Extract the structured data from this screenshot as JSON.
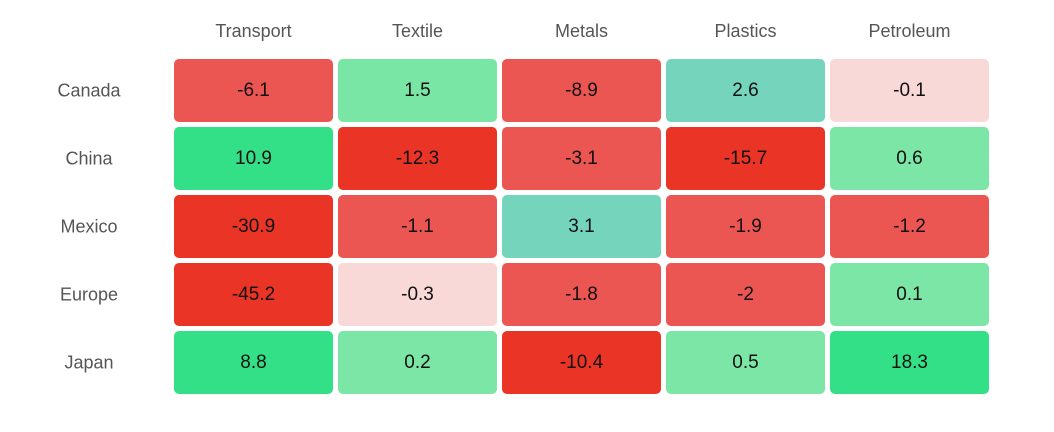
{
  "chart_data": {
    "type": "heatmap",
    "title": "",
    "xlabel": "",
    "ylabel": "",
    "columns": [
      "Transport",
      "Textile",
      "Metals",
      "Plastics",
      "Petroleum"
    ],
    "rows": [
      "Canada",
      "China",
      "Mexico",
      "Europe",
      "Japan"
    ],
    "values": [
      [
        -6.1,
        1.5,
        -8.9,
        2.6,
        -0.1
      ],
      [
        10.9,
        -12.3,
        -3.1,
        -15.7,
        0.6
      ],
      [
        -30.9,
        -1.1,
        3.1,
        -1.9,
        -1.2
      ],
      [
        -45.2,
        -0.3,
        -1.8,
        -2,
        0.1
      ],
      [
        8.8,
        0.2,
        -10.4,
        0.5,
        18.3
      ]
    ],
    "labels": [
      [
        "-6.1",
        "1.5",
        "-8.9",
        "2.6",
        "-0.1"
      ],
      [
        "10.9",
        "-12.3",
        "-3.1",
        "-15.7",
        "0.6"
      ],
      [
        "-30.9",
        "-1.1",
        "3.1",
        "-1.9",
        "-1.2"
      ],
      [
        "-45.2",
        "-0.3",
        "-1.8",
        "-2",
        "0.1"
      ],
      [
        "8.8",
        "0.2",
        "-10.4",
        "0.5",
        "18.3"
      ]
    ],
    "color_scale": [
      {
        "from": null,
        "to": -10,
        "color": "#e93426"
      },
      {
        "from": -10,
        "to": -1,
        "color": "#eb5552"
      },
      {
        "from": -1,
        "to": 0,
        "color": "#f8d9d8"
      },
      {
        "from": 0,
        "to": 1,
        "color": "#7be6a5"
      },
      {
        "from": 1,
        "to": 2,
        "color": "#7ae6a6"
      },
      {
        "from": 2,
        "to": 5,
        "color": "#74d4bc"
      },
      {
        "from": 5,
        "to": null,
        "color": "#33e087"
      }
    ]
  }
}
